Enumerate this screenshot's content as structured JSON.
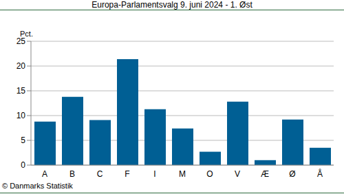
{
  "chart_data": {
    "type": "bar",
    "title": "Europa-Parlamentsvalg 9. juni 2024 - 1. Øst",
    "y_label": "Pct.",
    "source": "© Danmarks Statistik",
    "categories": [
      "A",
      "B",
      "C",
      "F",
      "I",
      "M",
      "O",
      "V",
      "Æ",
      "Ø",
      "Å"
    ],
    "values": [
      8.8,
      13.8,
      9.1,
      21.4,
      11.3,
      7.4,
      2.7,
      12.8,
      1.0,
      9.2,
      3.5
    ],
    "color": "#005f94",
    "ylim": [
      0,
      25
    ],
    "yticks": [
      0,
      5,
      10,
      15,
      20,
      25
    ],
    "grid": true
  }
}
